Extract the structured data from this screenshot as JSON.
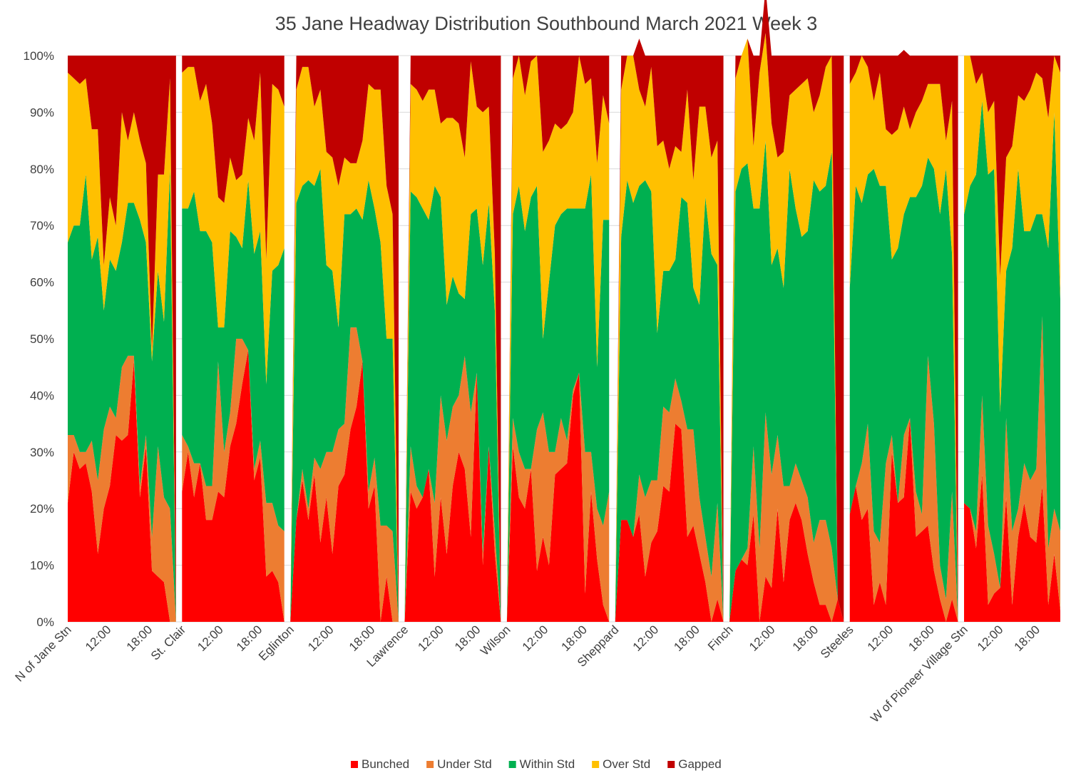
{
  "chart_data": {
    "type": "area",
    "stacked": true,
    "percent_stacked": true,
    "title": "35 Jane  Headway Distribution Southbound March 2021 Week 3",
    "xlabel": "",
    "ylabel": "",
    "ylim": [
      0,
      100
    ],
    "y_ticks": [
      "0%",
      "10%",
      "20%",
      "30%",
      "40%",
      "50%",
      "60%",
      "70%",
      "80%",
      "90%",
      "100%"
    ],
    "grid": "horizontal",
    "legend_position": "bottom",
    "x_tick_labels": [
      "N of Jane Stn",
      "12:00",
      "18:00",
      "St. Clair",
      "12:00",
      "18:00",
      "Eglinton",
      "12:00",
      "18:00",
      "Lawrence",
      "12:00",
      "18:00",
      "Wilson",
      "12:00",
      "18:00",
      "Sheppard",
      "12:00",
      "18:00",
      "Finch",
      "12:00",
      "18:00",
      "Steeles",
      "12:00",
      "18:00",
      "W of Pioneer Village Stn",
      "12:00",
      "18:00"
    ],
    "segments": [
      {
        "location": "N of Jane Stn",
        "bunched": [
          21,
          30,
          27,
          28,
          23,
          12,
          20,
          24,
          33,
          32,
          33,
          46,
          22,
          31,
          9,
          8,
          7,
          0,
          0
        ],
        "under_std": [
          12,
          3,
          3,
          2,
          9,
          13,
          14,
          14,
          3,
          13,
          14,
          1,
          2,
          2,
          6,
          23,
          15,
          20,
          0
        ],
        "within_std": [
          34,
          37,
          40,
          49,
          32,
          43,
          21,
          26,
          26,
          22,
          27,
          27,
          47,
          34,
          31,
          31,
          31,
          60,
          0
        ],
        "over_std": [
          30,
          26,
          25,
          17,
          23,
          19,
          8,
          11,
          8,
          23,
          11,
          16,
          14,
          14,
          2,
          17,
          26,
          16,
          0
        ],
        "gapped": [
          3,
          4,
          5,
          4,
          13,
          13,
          37,
          25,
          30,
          10,
          15,
          10,
          15,
          19,
          52,
          21,
          21,
          4,
          100
        ]
      },
      {
        "location": "St. Clair",
        "bunched": [
          23,
          30,
          22,
          28,
          18,
          18,
          23,
          22,
          31,
          35,
          42,
          48,
          25,
          29,
          8,
          9,
          7,
          0
        ],
        "under_std": [
          10,
          1,
          6,
          0,
          6,
          6,
          23,
          8,
          6,
          15,
          8,
          0,
          2,
          3,
          13,
          12,
          10,
          16
        ],
        "within_std": [
          40,
          42,
          48,
          41,
          45,
          43,
          6,
          22,
          32,
          18,
          16,
          30,
          38,
          37,
          21,
          41,
          46,
          50
        ],
        "over_std": [
          24,
          25,
          22,
          23,
          26,
          21,
          23,
          22,
          13,
          10,
          13,
          11,
          20,
          28,
          22,
          33,
          31,
          25
        ],
        "gapped": [
          3,
          2,
          2,
          8,
          5,
          12,
          25,
          26,
          18,
          22,
          21,
          11,
          15,
          3,
          36,
          5,
          6,
          9
        ]
      },
      {
        "location": "Eglinton",
        "bunched": [
          0,
          18,
          25,
          18,
          26,
          14,
          22,
          12,
          24,
          26,
          34,
          38,
          46,
          20,
          24,
          0,
          8,
          0,
          0
        ],
        "under_std": [
          0,
          0,
          2,
          2,
          3,
          13,
          8,
          18,
          10,
          9,
          18,
          14,
          0,
          3,
          5,
          17,
          9,
          16,
          0
        ],
        "within_std": [
          0,
          56,
          50,
          58,
          48,
          53,
          33,
          32,
          18,
          37,
          20,
          21,
          25,
          55,
          44,
          50,
          33,
          34,
          0
        ],
        "over_std": [
          0,
          20,
          21,
          20,
          14,
          14,
          20,
          20,
          25,
          10,
          9,
          8,
          14,
          17,
          21,
          27,
          27,
          22,
          0
        ],
        "gapped": [
          0,
          6,
          2,
          2,
          9,
          6,
          17,
          18,
          23,
          18,
          19,
          19,
          15,
          5,
          6,
          6,
          23,
          28,
          100
        ]
      },
      {
        "location": "Lawrence",
        "bunched": [
          0,
          23,
          20,
          22,
          27,
          8,
          22,
          12,
          24,
          30,
          27,
          15,
          44,
          10,
          31,
          12,
          0
        ],
        "under_std": [
          0,
          8,
          4,
          0,
          0,
          13,
          18,
          20,
          14,
          10,
          20,
          22,
          0,
          2,
          0,
          4,
          0
        ],
        "within_std": [
          0,
          45,
          51,
          51,
          44,
          56,
          35,
          24,
          23,
          18,
          10,
          35,
          29,
          51,
          43,
          39,
          0
        ],
        "over_std": [
          0,
          19,
          19,
          19,
          23,
          17,
          13,
          33,
          28,
          30,
          25,
          27,
          18,
          27,
          17,
          10,
          0
        ],
        "gapped": [
          0,
          5,
          6,
          8,
          6,
          6,
          12,
          11,
          11,
          12,
          18,
          1,
          9,
          10,
          9,
          35,
          100
        ]
      },
      {
        "location": "Wilson",
        "bunched": [
          0,
          31,
          22,
          20,
          27,
          9,
          15,
          10,
          26,
          27,
          28,
          40,
          44,
          5,
          23,
          11,
          3,
          0
        ],
        "under_std": [
          0,
          5,
          8,
          7,
          0,
          25,
          22,
          20,
          4,
          9,
          4,
          1,
          0,
          25,
          7,
          9,
          14,
          23
        ],
        "within_std": [
          0,
          36,
          47,
          42,
          48,
          43,
          13,
          30,
          40,
          36,
          41,
          32,
          29,
          43,
          49,
          25,
          54,
          48
        ],
        "over_std": [
          0,
          24,
          23,
          24,
          24,
          23,
          33,
          25,
          18,
          15,
          15,
          17,
          27,
          22,
          17,
          36,
          22,
          17
        ],
        "gapped": [
          0,
          4,
          0,
          7,
          1,
          0,
          17,
          15,
          12,
          13,
          12,
          10,
          0,
          5,
          4,
          19,
          7,
          12
        ]
      },
      {
        "location": "Sheppard",
        "bunched": [
          0,
          18,
          18,
          15,
          19,
          8,
          14,
          16,
          24,
          23,
          35,
          34,
          15,
          17,
          12,
          7,
          0,
          4,
          0
        ],
        "under_std": [
          0,
          0,
          0,
          0,
          7,
          14,
          11,
          9,
          14,
          14,
          8,
          5,
          19,
          17,
          10,
          8,
          8,
          17,
          0
        ],
        "within_std": [
          0,
          50,
          60,
          59,
          51,
          56,
          51,
          26,
          24,
          25,
          21,
          36,
          40,
          25,
          34,
          60,
          57,
          42,
          0
        ],
        "over_std": [
          0,
          26,
          22,
          26,
          17,
          13,
          22,
          33,
          23,
          18,
          20,
          8,
          20,
          19,
          35,
          16,
          17,
          22,
          0
        ],
        "gapped": [
          0,
          6,
          0,
          0,
          9,
          9,
          2,
          16,
          15,
          20,
          16,
          17,
          6,
          22,
          9,
          9,
          18,
          15,
          100
        ]
      },
      {
        "location": "Finch",
        "bunched": [
          0,
          9,
          11,
          10,
          19,
          0,
          8,
          6,
          20,
          7,
          18,
          21,
          18,
          12,
          7,
          3,
          3,
          0,
          4,
          0
        ],
        "under_std": [
          0,
          0,
          0,
          3,
          12,
          13,
          29,
          20,
          13,
          17,
          6,
          7,
          7,
          10,
          7,
          15,
          15,
          13,
          0,
          0
        ],
        "within_std": [
          0,
          67,
          69,
          68,
          42,
          60,
          48,
          37,
          33,
          35,
          56,
          45,
          43,
          47,
          64,
          58,
          59,
          70,
          0,
          0
        ],
        "over_std": [
          0,
          20,
          20,
          22,
          11,
          24,
          19,
          25,
          16,
          24,
          13,
          21,
          27,
          27,
          12,
          17,
          21,
          17,
          0,
          0
        ],
        "gapped": [
          0,
          4,
          0,
          0,
          16,
          3,
          8,
          12,
          18,
          17,
          7,
          6,
          5,
          4,
          10,
          7,
          2,
          0,
          96,
          100
        ]
      },
      {
        "location": "Steeles",
        "bunched": [
          19,
          24,
          18,
          20,
          3,
          7,
          3,
          30,
          21,
          22,
          36,
          15,
          16,
          17,
          9,
          4,
          0,
          4,
          0
        ],
        "under_std": [
          0,
          0,
          10,
          15,
          13,
          7,
          25,
          3,
          0,
          11,
          0,
          8,
          3,
          30,
          26,
          6,
          4,
          19,
          0
        ],
        "within_std": [
          40,
          53,
          46,
          44,
          64,
          63,
          49,
          31,
          45,
          39,
          39,
          52,
          58,
          35,
          45,
          62,
          76,
          42,
          0
        ],
        "over_std": [
          36,
          20,
          26,
          19,
          12,
          20,
          10,
          22,
          21,
          19,
          12,
          15,
          15,
          13,
          15,
          23,
          5,
          27,
          0
        ],
        "gapped": [
          5,
          3,
          0,
          2,
          8,
          3,
          13,
          14,
          13,
          10,
          13,
          10,
          8,
          5,
          5,
          5,
          15,
          8,
          100
        ]
      },
      {
        "location": "W of Pioneer Village Stn",
        "bunched": [
          21,
          20,
          13,
          26,
          3,
          5,
          6,
          22,
          3,
          15,
          21,
          15,
          14,
          24,
          3,
          12,
          2
        ],
        "under_std": [
          0,
          0,
          3,
          14,
          14,
          7,
          0,
          14,
          13,
          5,
          7,
          10,
          13,
          30,
          10,
          8,
          14
        ],
        "within_std": [
          51,
          57,
          63,
          52,
          62,
          68,
          31,
          26,
          50,
          60,
          41,
          44,
          45,
          18,
          53,
          70,
          41
        ],
        "over_std": [
          28,
          23,
          16,
          5,
          11,
          12,
          24,
          20,
          18,
          13,
          23,
          25,
          25,
          24,
          23,
          10,
          40
        ],
        "gapped": [
          0,
          0,
          5,
          3,
          10,
          8,
          39,
          18,
          16,
          7,
          8,
          6,
          3,
          4,
          11,
          0,
          3
        ]
      }
    ],
    "series": [
      {
        "name": "Bunched",
        "key": "bunched",
        "color": "#ff0000"
      },
      {
        "name": "Under Std",
        "key": "under_std",
        "color": "#ed7d31"
      },
      {
        "name": "Within Std",
        "key": "within_std",
        "color": "#00b050"
      },
      {
        "name": "Over Std",
        "key": "over_std",
        "color": "#ffc000"
      },
      {
        "name": "Gapped",
        "key": "gapped",
        "color": "#c00000"
      }
    ]
  },
  "colors": {
    "grid": "#d9d9d9",
    "text": "#404040",
    "background": "#ffffff"
  }
}
